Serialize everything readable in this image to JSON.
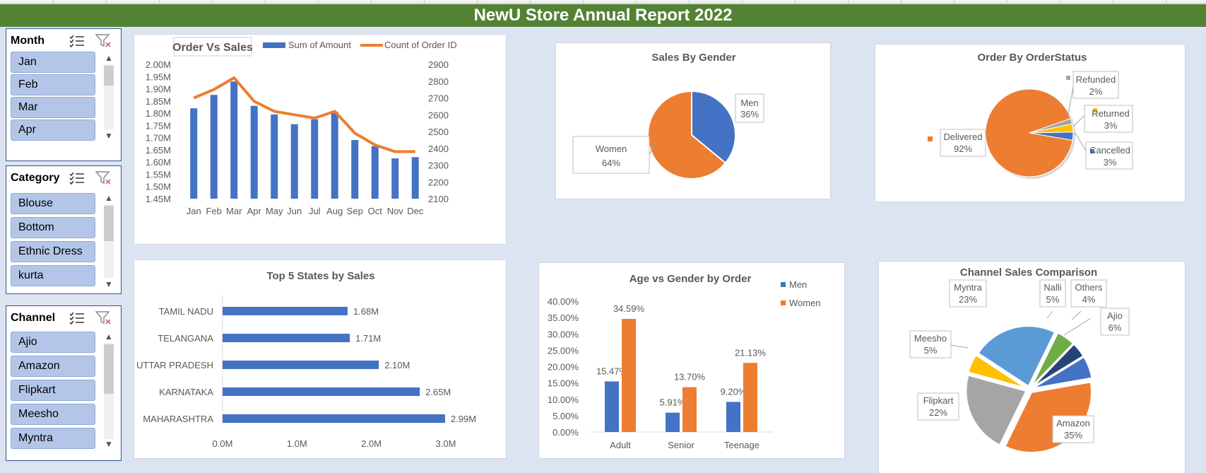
{
  "report_title": "NewU Store Annual Report 2022",
  "slicers": {
    "month": {
      "title": "Month",
      "items": [
        "Jan",
        "Feb",
        "Mar",
        "Apr"
      ]
    },
    "category": {
      "title": "Category",
      "items": [
        "Blouse",
        "Bottom",
        "Ethnic Dress",
        "kurta"
      ]
    },
    "channel": {
      "title": "Channel",
      "items": [
        "Ajio",
        "Amazon",
        "Flipkart",
        "Meesho",
        "Myntra"
      ]
    }
  },
  "icons": {
    "multiselect": "multi-select-icon",
    "clear_filter": "clear-filter-icon",
    "scroll_up": "▲",
    "scroll_down": "▼"
  },
  "colors": {
    "banner": "#548235",
    "blue": "#4472c4",
    "orange": "#ed7d31",
    "gray": "#a5a5a5",
    "gold": "#ffc000",
    "lightblue": "#5b9bd5",
    "green": "#70ad47",
    "navy": "#264478",
    "slicer_item": "#b4c6e7"
  },
  "chart_data": [
    {
      "id": "order-vs-sales",
      "type": "bar",
      "title": "Order Vs Sales",
      "categories": [
        "Jan",
        "Feb",
        "Mar",
        "Apr",
        "May",
        "Jun",
        "Jul",
        "Aug",
        "Sep",
        "Oct",
        "Nov",
        "Dec"
      ],
      "series": [
        {
          "name": "Sum of Amount",
          "type": "bar",
          "axis": "left",
          "values": [
            1.82,
            1.875,
            1.93,
            1.83,
            1.795,
            1.755,
            1.775,
            1.805,
            1.69,
            1.665,
            1.615,
            1.62
          ]
        },
        {
          "name": "Count of Order ID",
          "type": "line",
          "axis": "right",
          "values": [
            2700,
            2750,
            2820,
            2680,
            2620,
            2600,
            2580,
            2620,
            2490,
            2420,
            2380,
            2380
          ]
        }
      ],
      "y_left": {
        "min": 1.45,
        "max": 2.0,
        "ticks": [
          "2.00M",
          "1.95M",
          "1.90M",
          "1.85M",
          "1.80M",
          "1.75M",
          "1.70M",
          "1.65M",
          "1.60M",
          "1.55M",
          "1.50M",
          "1.45M"
        ]
      },
      "y_right": {
        "min": 2100,
        "max": 2900,
        "ticks": [
          "2900",
          "2800",
          "2700",
          "2600",
          "2500",
          "2400",
          "2300",
          "2200",
          "2100"
        ]
      },
      "legend": "top"
    },
    {
      "id": "sales-by-gender",
      "type": "pie",
      "title": "Sales By Gender",
      "slices": [
        {
          "label": "Men",
          "value": 36,
          "display": "36%",
          "color": "#4472c4"
        },
        {
          "label": "Women",
          "value": 64,
          "display": "64%",
          "color": "#ed7d31"
        }
      ]
    },
    {
      "id": "order-by-orderstatus",
      "type": "pie",
      "title": "Order By OrderStatus",
      "slices": [
        {
          "label": "Delivered",
          "value": 92,
          "display": "92%",
          "color": "#ed7d31"
        },
        {
          "label": "Cancelled",
          "value": 3,
          "display": "3%",
          "color": "#4472c4"
        },
        {
          "label": "Returned",
          "value": 3,
          "display": "3%",
          "color": "#ffc000"
        },
        {
          "label": "Refunded",
          "value": 2,
          "display": "2%",
          "color": "#a5a5a5"
        }
      ]
    },
    {
      "id": "top-5-states",
      "type": "bar",
      "orientation": "horizontal",
      "title": "Top 5 States by Sales",
      "categories": [
        "TAMIL NADU",
        "TELANGANA",
        "UTTAR PRADESH",
        "KARNATAKA",
        "MAHARASHTRA"
      ],
      "values": [
        1.68,
        1.71,
        2.1,
        2.65,
        2.99
      ],
      "labels": [
        "1.68M",
        "1.71M",
        "2.10M",
        "2.65M",
        "2.99M"
      ],
      "xlim": [
        0,
        3
      ],
      "x_ticks": [
        "0.0M",
        "1.0M",
        "2.0M",
        "3.0M"
      ]
    },
    {
      "id": "age-vs-gender",
      "type": "bar",
      "title": "Age vs Gender by Order",
      "categories": [
        "Adult",
        "Senior",
        "Teenage"
      ],
      "series": [
        {
          "name": "Men",
          "values": [
            15.47,
            5.91,
            9.2
          ],
          "labels": [
            "15.47%",
            "5.91%",
            "9.20%"
          ],
          "color": "#4472c4"
        },
        {
          "name": "Women",
          "values": [
            34.59,
            13.7,
            21.13
          ],
          "labels": [
            "34.59%",
            "13.70%",
            "21.13%"
          ],
          "color": "#ed7d31"
        }
      ],
      "ylim": [
        0,
        40
      ],
      "y_ticks": [
        "40.00%",
        "35.00%",
        "30.00%",
        "25.00%",
        "20.00%",
        "15.00%",
        "10.00%",
        "5.00%",
        "0.00%"
      ],
      "legend": "right"
    },
    {
      "id": "channel-sales",
      "type": "pie",
      "title": "Channel Sales Comparison",
      "slices": [
        {
          "label": "Ajio",
          "value": 6,
          "display": "6%",
          "color": "#4472c4"
        },
        {
          "label": "Amazon",
          "value": 35,
          "display": "35%",
          "color": "#ed7d31"
        },
        {
          "label": "Flipkart",
          "value": 22,
          "display": "22%",
          "color": "#a5a5a5"
        },
        {
          "label": "Meesho",
          "value": 5,
          "display": "5%",
          "color": "#ffc000"
        },
        {
          "label": "Myntra",
          "value": 23,
          "display": "23%",
          "color": "#5b9bd5"
        },
        {
          "label": "Nalli",
          "value": 5,
          "display": "5%",
          "color": "#70ad47"
        },
        {
          "label": "Others",
          "value": 4,
          "display": "4%",
          "color": "#264478"
        }
      ]
    }
  ]
}
